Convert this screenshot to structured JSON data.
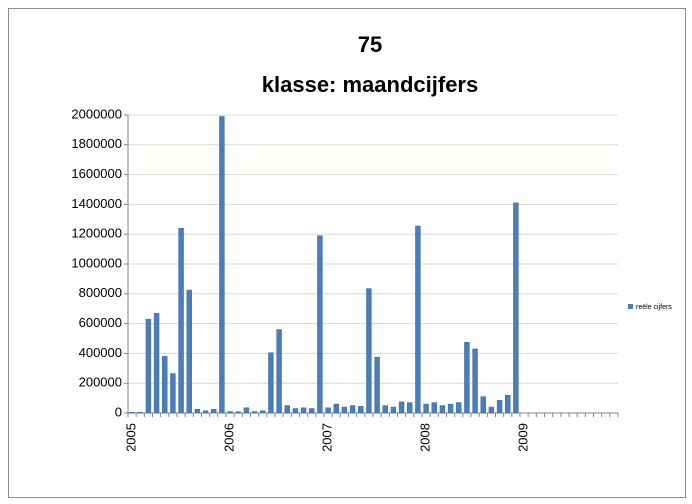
{
  "chart_data": {
    "type": "bar",
    "title": "75",
    "subtitle": "klasse: maandcijfers",
    "categories": [
      "2005",
      null,
      null,
      null,
      null,
      null,
      null,
      null,
      null,
      null,
      null,
      null,
      "2006",
      null,
      null,
      null,
      null,
      null,
      null,
      null,
      null,
      null,
      null,
      null,
      "2007",
      null,
      null,
      null,
      null,
      null,
      null,
      null,
      null,
      null,
      null,
      null,
      "2008",
      null,
      null,
      null,
      null,
      null,
      null,
      null,
      null,
      null,
      null,
      null,
      "2009",
      null,
      null,
      null,
      null,
      null,
      null,
      null,
      null,
      null,
      null,
      null
    ],
    "series": [
      {
        "name": "reële cijfers",
        "color": "#4a7ebb",
        "values": [
          5000,
          5000,
          630000,
          670000,
          380000,
          265000,
          1240000,
          825000,
          25000,
          15000,
          25000,
          1990000,
          10000,
          8000,
          35000,
          10000,
          15000,
          405000,
          560000,
          50000,
          30000,
          35000,
          30000,
          1190000,
          35000,
          60000,
          40000,
          50000,
          45000,
          835000,
          375000,
          50000,
          40000,
          75000,
          70000,
          1255000,
          60000,
          70000,
          50000,
          60000,
          70000,
          475000,
          430000,
          110000,
          40000,
          85000,
          120000,
          1410000,
          0,
          0,
          0,
          0,
          0,
          0,
          0,
          0,
          0,
          0,
          0,
          0
        ]
      }
    ],
    "ylim": [
      0,
      2000000
    ],
    "yticks": [
      0,
      200000,
      400000,
      600000,
      800000,
      1000000,
      1200000,
      1400000,
      1600000,
      1800000,
      2000000
    ],
    "grid": true,
    "legend": "right"
  }
}
